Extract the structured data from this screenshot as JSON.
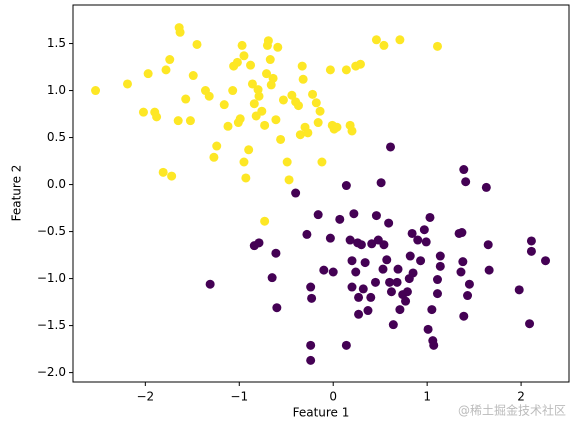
{
  "chart_data": {
    "type": "scatter",
    "xlabel": "Feature 1",
    "ylabel": "Feature 2",
    "watermark": "@稀土掘金技术社区",
    "xlim": [
      -2.77,
      2.51
    ],
    "ylim": [
      -2.1,
      1.91
    ],
    "xticks": [
      {
        "value": -2,
        "label": "−2"
      },
      {
        "value": -1,
        "label": "−1"
      },
      0,
      1,
      2
    ],
    "yticks": [
      {
        "value": -2,
        "label": "−2.0"
      },
      {
        "value": -1.5,
        "label": "−1.5"
      },
      {
        "value": -1,
        "label": "−1.0"
      },
      {
        "value": -0.5,
        "label": "−0.5"
      },
      {
        "value": 0,
        "label": "0.0"
      },
      0.5,
      {
        "value": 1,
        "label": "1.0"
      },
      1.5
    ],
    "series": [
      {
        "color": "#fde725",
        "x": [
          -2.53,
          -2.19,
          -1.97,
          -2.02,
          -1.9,
          -1.88,
          -1.78,
          -1.74,
          -1.64,
          -1.63,
          -1.57,
          -1.52,
          -1.65,
          -1.81,
          -1.72,
          -1.49,
          -1.45,
          -1.36,
          -1.32,
          -1.27,
          -1.24,
          -1.16,
          -1.12,
          -1.07,
          -1.06,
          -1.02,
          -1.01,
          -0.99,
          -0.97,
          -0.95,
          -0.93,
          -0.95,
          -0.9,
          -0.88,
          -0.86,
          -0.84,
          -0.82,
          -0.8,
          -0.79,
          -0.76,
          -0.73,
          -0.73,
          -0.71,
          -0.7,
          -0.69,
          -0.67,
          -0.66,
          -0.64,
          -0.61,
          -0.59,
          -0.56,
          -0.53,
          -0.49,
          -0.47,
          -0.44,
          -0.4,
          -0.37,
          -0.35,
          -0.33,
          -0.32,
          -0.3,
          -0.27,
          -0.22,
          -0.18,
          -0.16,
          -0.14,
          -0.12,
          -0.03,
          -0.01,
          0.01,
          0.04,
          0.14,
          0.18,
          0.2,
          0.24,
          0.29,
          0.46,
          0.54,
          0.71,
          1.11
        ],
        "values": [
          1.0,
          1.07,
          1.18,
          0.77,
          0.77,
          0.72,
          1.22,
          1.33,
          1.67,
          1.62,
          0.91,
          0.68,
          0.68,
          0.13,
          0.09,
          1.16,
          1.49,
          1.0,
          0.94,
          0.29,
          0.41,
          0.85,
          0.62,
          1.0,
          1.26,
          1.3,
          0.66,
          0.7,
          1.48,
          0.24,
          0.07,
          1.37,
          0.37,
          1.27,
          1.07,
          0.86,
          0.73,
          1.01,
          0.94,
          0.78,
          0.63,
          -0.39,
          1.18,
          1.48,
          1.53,
          1.33,
          1.06,
          1.13,
          0.69,
          1.46,
          0.48,
          0.9,
          0.24,
          0.05,
          0.95,
          0.88,
          0.84,
          0.53,
          1.26,
          1.12,
          0.61,
          0.55,
          0.96,
          0.87,
          0.66,
          0.78,
          0.24,
          1.22,
          0.63,
          0.59,
          0.61,
          1.22,
          0.63,
          0.57,
          1.26,
          1.28,
          1.54,
          1.48,
          1.54,
          1.47
        ]
      },
      {
        "color": "#440154",
        "x": [
          -1.31,
          -0.84,
          -0.79,
          -0.65,
          -0.61,
          -0.6,
          -0.4,
          -0.28,
          -0.24,
          -0.23,
          -0.16,
          -0.24,
          -0.24,
          -0.1,
          0.0,
          -0.03,
          0.14,
          0.07,
          0.14,
          0.18,
          0.2,
          0.2,
          0.22,
          0.24,
          0.26,
          0.27,
          0.27,
          0.3,
          0.32,
          0.34,
          0.37,
          0.4,
          0.41,
          0.45,
          0.46,
          0.48,
          0.53,
          0.54,
          0.57,
          0.59,
          0.6,
          0.62,
          0.64,
          0.68,
          0.69,
          0.71,
          0.74,
          0.77,
          0.79,
          0.81,
          0.82,
          0.84,
          0.85,
          0.9,
          0.93,
          0.97,
          0.99,
          1.03,
          1.01,
          1.05,
          1.06,
          1.07,
          1.11,
          1.11,
          1.14,
          1.14,
          1.34,
          1.36,
          1.38,
          1.37,
          1.39,
          1.43,
          1.45,
          1.39,
          1.41,
          1.63,
          1.65,
          1.66,
          1.98,
          2.09,
          2.11,
          2.11,
          2.26,
          0.61,
          0.51
        ],
        "values": [
          -1.06,
          -0.65,
          -0.62,
          -0.99,
          -0.73,
          -1.31,
          -0.09,
          -0.53,
          -1.09,
          -1.21,
          -0.32,
          -1.71,
          -1.87,
          -0.91,
          -0.93,
          -0.57,
          -0.01,
          -0.37,
          -1.71,
          -0.59,
          -0.81,
          -1.09,
          -0.31,
          -0.93,
          -0.62,
          -1.2,
          -1.38,
          -0.64,
          -1.11,
          -0.83,
          -1.34,
          -1.2,
          -0.63,
          -1.04,
          -0.33,
          -0.59,
          -0.9,
          -0.64,
          -0.8,
          -0.41,
          -1.04,
          -1.14,
          -1.49,
          -1.04,
          -0.9,
          -1.33,
          -1.17,
          -1.24,
          -1.14,
          -1.0,
          -0.76,
          -0.52,
          -0.94,
          -0.59,
          -0.81,
          -0.48,
          -0.61,
          -0.35,
          -1.54,
          -1.33,
          -1.66,
          -1.71,
          -1.01,
          -1.16,
          -0.76,
          -0.87,
          -0.52,
          -0.93,
          -0.82,
          -0.51,
          -1.4,
          -1.18,
          -1.06,
          0.16,
          0.03,
          -0.03,
          -0.64,
          -0.91,
          -1.12,
          -1.48,
          -0.71,
          -0.6,
          -0.81,
          0.4,
          0.02
        ]
      }
    ]
  }
}
